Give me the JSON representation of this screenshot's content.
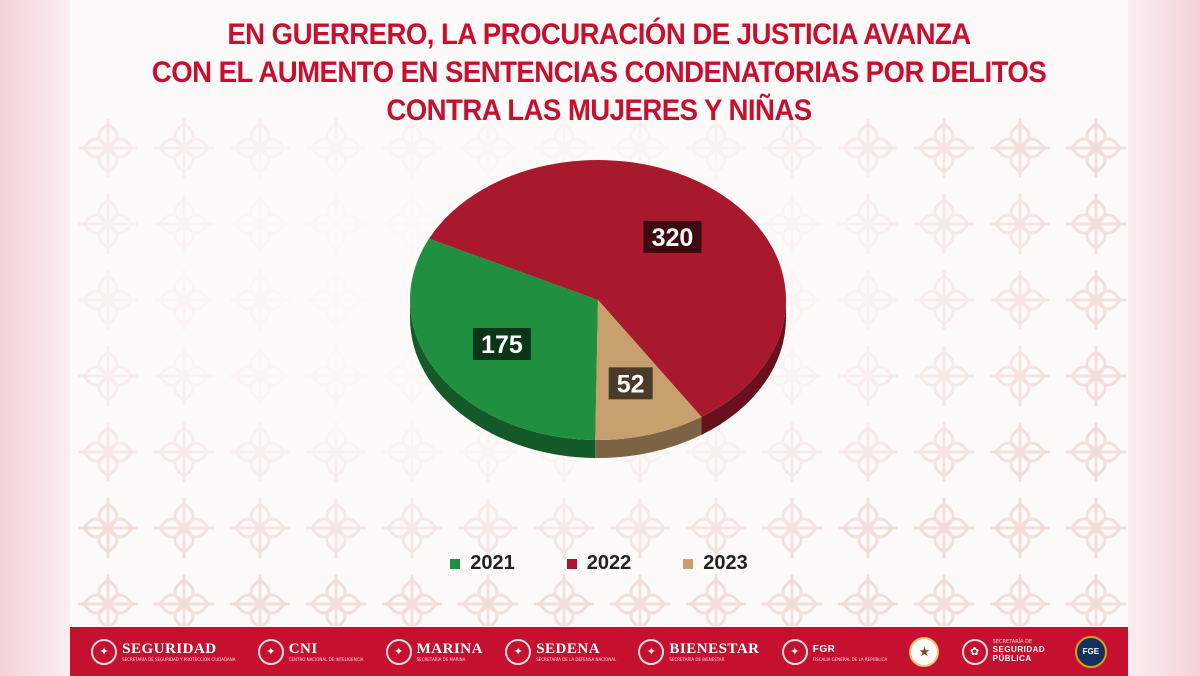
{
  "header": {
    "title_lines": [
      "EN GUERRERO, LA PROCURACIÓN DE JUSTICIA AVANZA",
      "CON EL AUMENTO EN SENTENCIAS CONDENATORIAS POR DELITOS",
      "CONTRA LAS MUJERES Y NIÑAS"
    ]
  },
  "chart_data": {
    "type": "pie",
    "style": "3d",
    "title": "EN GUERRERO, LA PROCURACIÓN DE JUSTICIA AVANZA CON EL AUMENTO EN SENTENCIAS CONDENATORIAS POR DELITOS CONTRA LAS MUJERES Y NIÑAS",
    "categories": [
      "2021",
      "2022",
      "2023"
    ],
    "values": [
      175,
      320,
      52
    ],
    "colors": [
      "#209040",
      "#a8192e",
      "#c8a06e"
    ],
    "data_labels": [
      "175",
      "320",
      "52"
    ],
    "legend_position": "bottom"
  },
  "footer": {
    "logos": [
      {
        "name": "SEGURIDAD",
        "sub": "SECRETARÍA DE SEGURIDAD Y PROTECCIÓN CIUDADANA",
        "icon": "eagle-seal-icon"
      },
      {
        "name": "CNI",
        "sub": "CENTRO NACIONAL DE INTELIGENCIA",
        "icon": "eagle-seal-icon"
      },
      {
        "name": "MARINA",
        "sub": "SECRETARÍA DE MARINA",
        "icon": "eagle-seal-icon"
      },
      {
        "name": "SEDENA",
        "sub": "SECRETARÍA DE LA DEFENSA NACIONAL",
        "icon": "eagle-seal-icon"
      },
      {
        "name": "BIENESTAR",
        "sub": "SECRETARÍA DE BIENESTAR",
        "icon": "eagle-seal-icon"
      },
      {
        "name": "FGR",
        "sub": "FISCALÍA GENERAL DE LA REPÚBLICA",
        "icon": "eagle-seal-icon"
      }
    ],
    "state_logo": {
      "sub": "SECRETARÍA DE",
      "name": "SEGURIDAD PÚBLICA"
    },
    "guard_seal_icon": "guardia-nacional-seal-icon",
    "fge_seal": {
      "text": "FGE",
      "icon": "fge-seal-icon"
    }
  }
}
